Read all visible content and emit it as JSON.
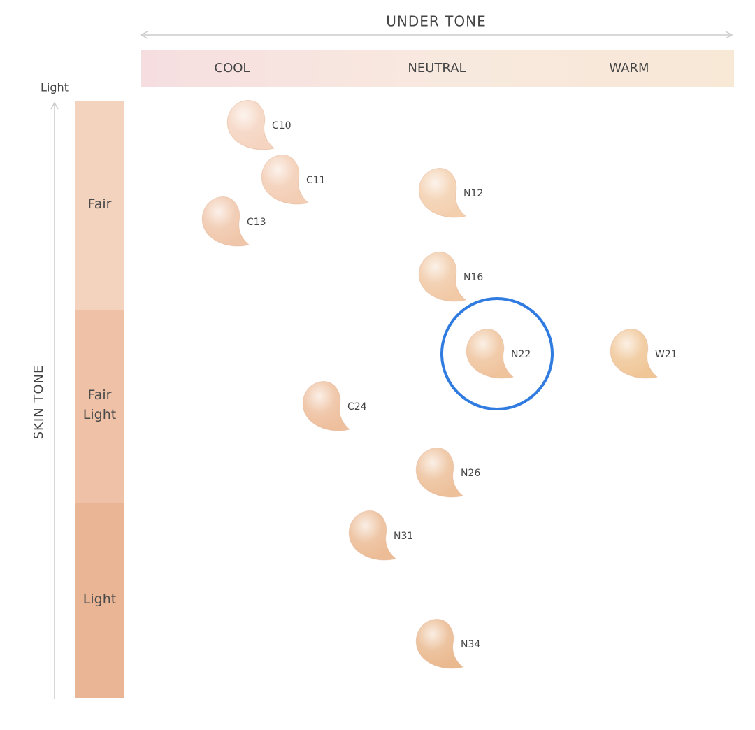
{
  "header": {
    "title": "UNDER TONE",
    "undertones": [
      "COOL",
      "NEUTRAL",
      "WARM"
    ]
  },
  "axis": {
    "top_label": "Light",
    "title": "SKIN TONE",
    "levels": [
      "Fair",
      "Fair Light",
      "Light"
    ]
  },
  "swatches": [
    {
      "label": "C10"
    },
    {
      "label": "C11"
    },
    {
      "label": "C13"
    },
    {
      "label": "N12"
    },
    {
      "label": "N16"
    },
    {
      "label": "N22"
    },
    {
      "label": "W21"
    },
    {
      "label": "C24"
    },
    {
      "label": "N26"
    },
    {
      "label": "N31"
    },
    {
      "label": "N34"
    }
  ]
}
